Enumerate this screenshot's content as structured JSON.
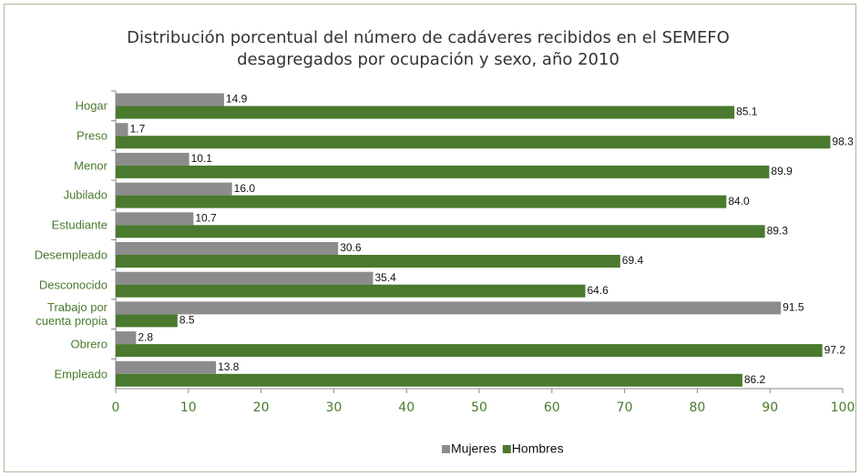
{
  "chart_data": {
    "type": "hbar",
    "title": "Distribución porcentual del número de cadáveres recibidos en el SEMEFO",
    "subtitle": "desagregados por ocupación y sexo, año 2010",
    "categories": [
      "Hogar",
      "Preso",
      "Menor",
      "Jubilado",
      "Estudiante",
      "Desempleado",
      "Desconocido",
      "Trabajo por\ncuenta propia",
      "Obrero",
      "Empleado"
    ],
    "series": [
      {
        "name": "Mujeres",
        "color": "#8c8c8c",
        "values": [
          14.9,
          1.7,
          10.1,
          16.0,
          10.7,
          30.6,
          35.4,
          91.5,
          2.8,
          13.8
        ],
        "value_labels": [
          "14.9",
          "1.7",
          "10.1",
          "16.0",
          "10.7",
          "30.6",
          "35.4",
          "91.5",
          "2.8",
          "13.8"
        ]
      },
      {
        "name": "Hombres",
        "color": "#4a7a2e",
        "values": [
          85.1,
          98.3,
          89.9,
          84.0,
          89.3,
          69.4,
          64.6,
          8.5,
          97.2,
          86.2
        ],
        "value_labels": [
          "85.1",
          "98.3",
          "89.9",
          "84.0",
          "89.3",
          "69.4",
          "64.6",
          "8.5",
          "97.2",
          "86.2"
        ]
      }
    ],
    "xlim": [
      0,
      100
    ],
    "xticks": [
      0,
      10,
      20,
      30,
      40,
      50,
      60,
      70,
      80,
      90,
      100
    ],
    "legend": "bottom"
  }
}
